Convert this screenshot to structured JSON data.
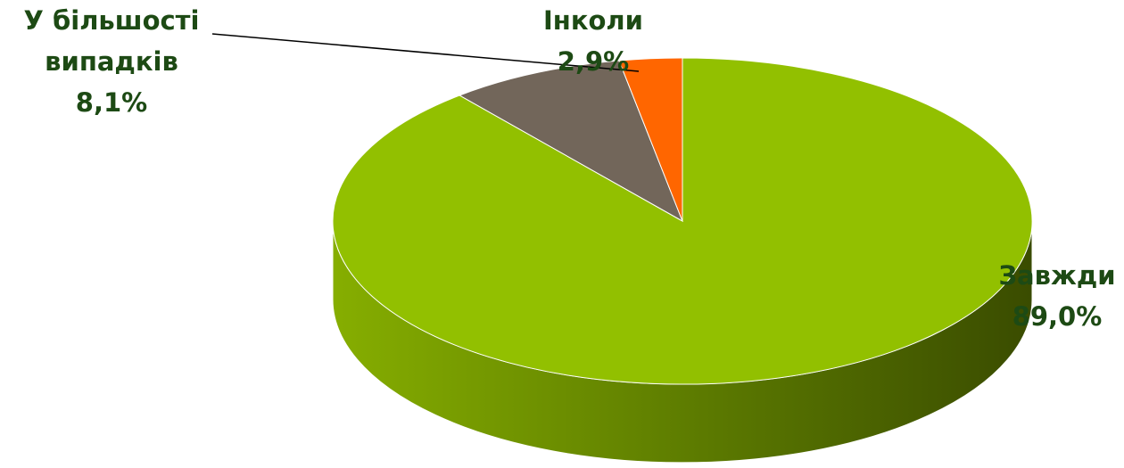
{
  "chart_data": {
    "type": "pie",
    "categories": [
      "Завжди",
      "У більшості випадків",
      "Інколи"
    ],
    "values": [
      89.0,
      8.1,
      2.9
    ],
    "value_labels": [
      "89,0%",
      "8,1%",
      "2,9%"
    ],
    "colors": [
      "#92c000",
      "#72665a",
      "#ff6600"
    ],
    "three_d": true
  }
}
